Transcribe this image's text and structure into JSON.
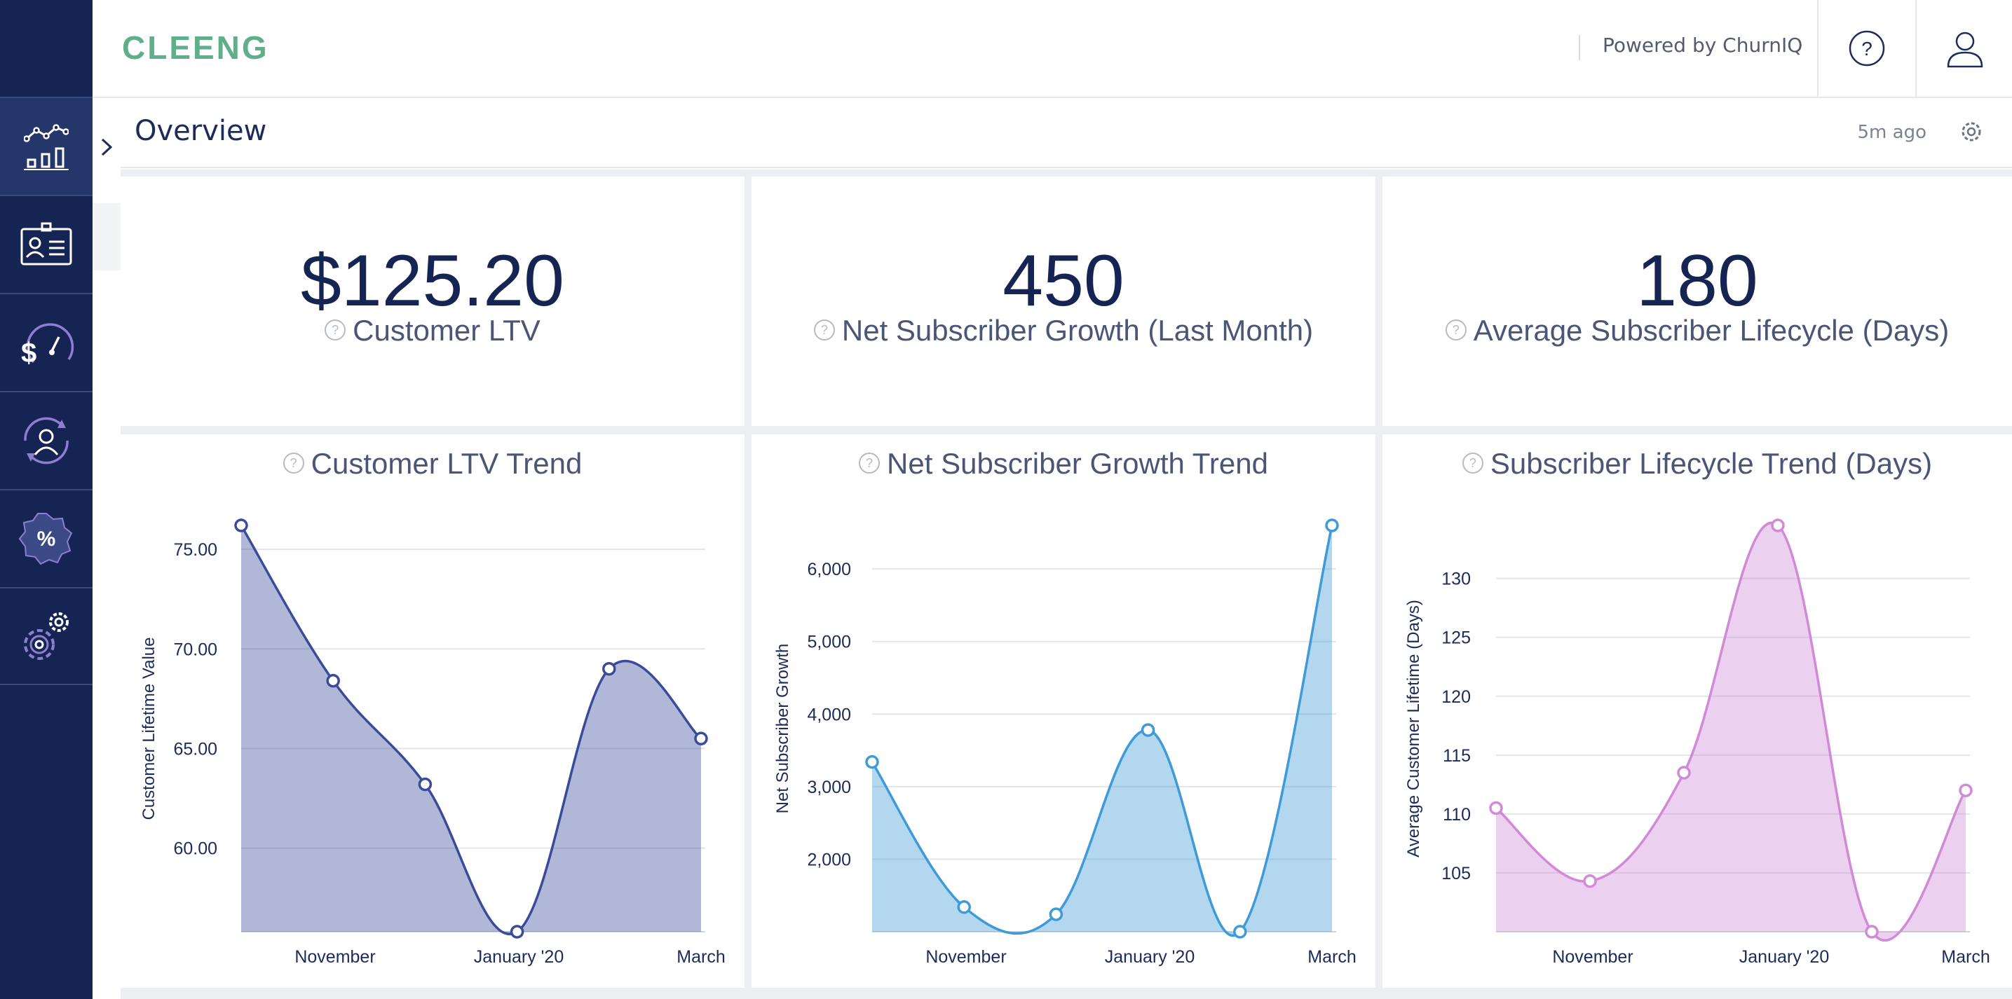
{
  "app": {
    "logo": "CLEENG",
    "powered_by": "Powered by ChurnIQ"
  },
  "header": {
    "help_icon": "question-circle-icon",
    "user_icon": "user-icon"
  },
  "sidebar": {
    "items": [
      {
        "name": "analytics",
        "icon": "chart-icon",
        "active": true
      },
      {
        "name": "customers",
        "icon": "id-card-icon"
      },
      {
        "name": "revenue",
        "icon": "dollar-gauge-icon"
      },
      {
        "name": "retention",
        "icon": "user-cycle-icon"
      },
      {
        "name": "offers",
        "icon": "percent-badge-icon"
      },
      {
        "name": "settings",
        "icon": "gears-icon"
      }
    ]
  },
  "page": {
    "title": "Overview",
    "updated": "5m ago"
  },
  "kpis": [
    {
      "value": "$125.20",
      "label": "Customer LTV"
    },
    {
      "value": "450",
      "label": "Net Subscriber Growth (Last Month)"
    },
    {
      "value": "180",
      "label": "Average Subscriber Lifecycle (Days)"
    }
  ],
  "colors": {
    "sidebar": "#152452",
    "ltv": "#3a4b9a",
    "growth": "#3f9ad8",
    "lifecycle": "#d08ad6",
    "logo": "#5fb08a"
  },
  "chart_data": [
    {
      "type": "area",
      "title": "Customer LTV Trend",
      "ylabel": "Customer Lifetime Value",
      "xlabel": "",
      "x_ticks": [
        "November",
        "January '20",
        "March"
      ],
      "y_ticks": [
        "60.00",
        "65.00",
        "70.00",
        "75.00"
      ],
      "ylim": [
        55.8,
        76.2
      ],
      "values": [
        76.2,
        68.4,
        63.2,
        55.8,
        69.0,
        65.5
      ],
      "grid": true
    },
    {
      "type": "area",
      "title": "Net Subscriber Growth Trend",
      "ylabel": "Net Subscriber Growth",
      "xlabel": "",
      "x_ticks": [
        "November",
        "January '20",
        "March"
      ],
      "y_ticks": [
        "2,000",
        "3,000",
        "4,000",
        "5,000",
        "6,000"
      ],
      "ylim": [
        1000,
        6600
      ],
      "values": [
        3340,
        1340,
        1240,
        3780,
        1000,
        6600
      ],
      "grid": true
    },
    {
      "type": "area",
      "title": "Subscriber Lifecycle Trend (Days)",
      "ylabel": "Average Customer Lifetime (Days)",
      "xlabel": "",
      "x_ticks": [
        "November",
        "January '20",
        "March"
      ],
      "y_ticks": [
        "105",
        "110",
        "115",
        "120",
        "125",
        "130"
      ],
      "ylim": [
        100,
        134.5
      ],
      "values": [
        110.5,
        104.3,
        113.5,
        134.5,
        100.0,
        112.0
      ],
      "grid": true
    }
  ]
}
